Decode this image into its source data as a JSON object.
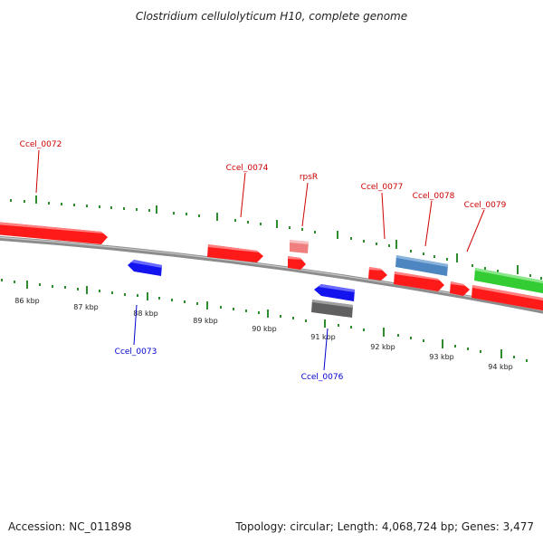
{
  "title": "Clostridium cellulolyticum H10, complete genome",
  "footer": {
    "accession": "Accession: NC_011898",
    "summary": "Topology: circular; Length: 4,068,724 bp; Genes: 3,477"
  },
  "colors": {
    "forward_gene": "#ff1a1a",
    "reverse_gene": "#1414ee",
    "rRNA": "#f08080",
    "pseudo_gene": "#606060",
    "other_gene": "#4d86c0",
    "highlight_gene": "#33cc33",
    "backbone": "#8c8c8c",
    "ticks": "#2e8b2e",
    "forward_label": "#cc0000",
    "reverse_label": "#0000cc"
  },
  "scale_labels": [
    "86 kbp",
    "87 kbp",
    "88 kbp",
    "89 kbp",
    "90 kbp",
    "91 kbp",
    "92 kbp",
    "93 kbp",
    "94 kbp"
  ],
  "gene_labels": [
    {
      "text": "Ccel_0072",
      "strand": "forward"
    },
    {
      "text": "Ccel_0073",
      "strand": "reverse"
    },
    {
      "text": "Ccel_0074",
      "strand": "forward"
    },
    {
      "text": "rpsR",
      "strand": "forward"
    },
    {
      "text": "Ccel_0076",
      "strand": "reverse"
    },
    {
      "text": "Ccel_0077",
      "strand": "forward"
    },
    {
      "text": "Ccel_0078",
      "strand": "forward"
    },
    {
      "text": "Ccel_0079",
      "strand": "forward"
    }
  ]
}
